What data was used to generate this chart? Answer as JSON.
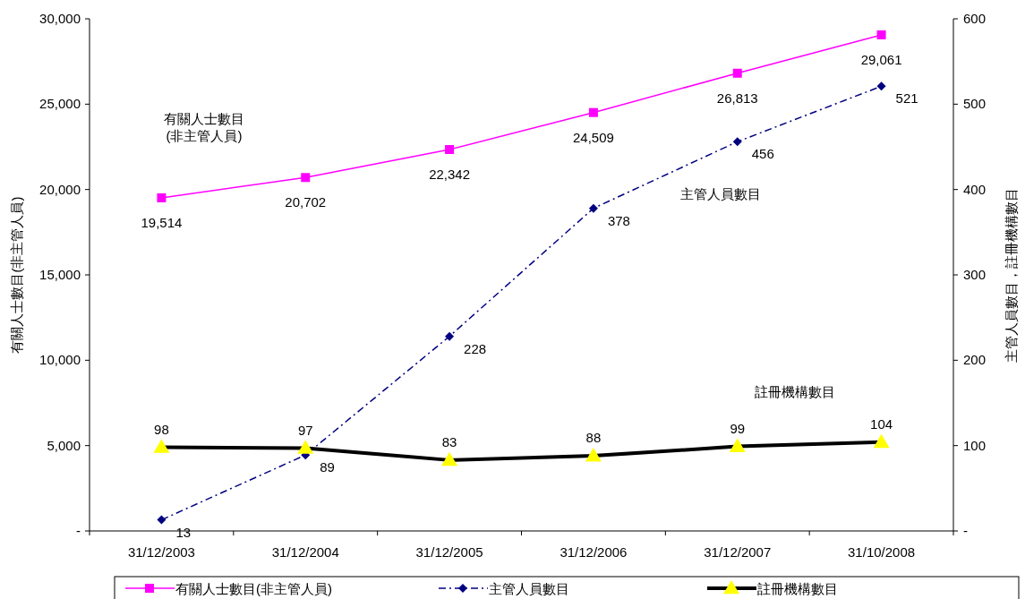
{
  "chart_data": {
    "type": "line",
    "ylabel": "有關人士數目(非主管人員)",
    "y2label": "主管人員數目，註冊機構數目",
    "categories": [
      "31/12/2003",
      "31/12/2004",
      "31/12/2005",
      "31/12/2006",
      "31/12/2007",
      "31/10/2008"
    ],
    "series": [
      {
        "name": "有關人士數目(非主管人員)",
        "color": "#ff00ff",
        "marker": "square",
        "line_style": "solid",
        "values": [
          19514,
          20702,
          22342,
          24509,
          26813,
          29061
        ],
        "value_labels": [
          "19,514",
          "20,702",
          "22,342",
          "24,509",
          "26,813",
          "29,061"
        ]
      },
      {
        "name": "主管人員數目",
        "color": "#000080",
        "marker": "diamond",
        "line_style": "dashed",
        "axis": "y2",
        "values": [
          13,
          89,
          228,
          378,
          456,
          521
        ]
      },
      {
        "name": "註冊機構數目",
        "color": "#000000",
        "marker": "triangle",
        "line_style": "solid",
        "axis": "y2",
        "values": [
          98,
          97,
          83,
          88,
          99,
          104
        ]
      }
    ],
    "ylim": [
      0,
      30000
    ],
    "yticks": [
      {
        "value": 0,
        "label": "-"
      },
      {
        "value": 5000,
        "label": "5,000"
      },
      {
        "value": 10000,
        "label": "10,000"
      },
      {
        "value": 15000,
        "label": "15,000"
      },
      {
        "value": 20000,
        "label": "20,000"
      },
      {
        "value": 25000,
        "label": "25,000"
      },
      {
        "value": 30000,
        "label": "30,000"
      }
    ],
    "y2lim": [
      0,
      600
    ],
    "y2ticks": [
      {
        "value": 0,
        "label": "-"
      },
      100,
      200,
      300,
      400,
      500,
      600
    ],
    "data_labels": true,
    "legend": "bottom",
    "grid": false,
    "annotations": [
      "有關人士數目\n(非主管人員)",
      "主管人員數目",
      "註冊機構數目"
    ]
  }
}
